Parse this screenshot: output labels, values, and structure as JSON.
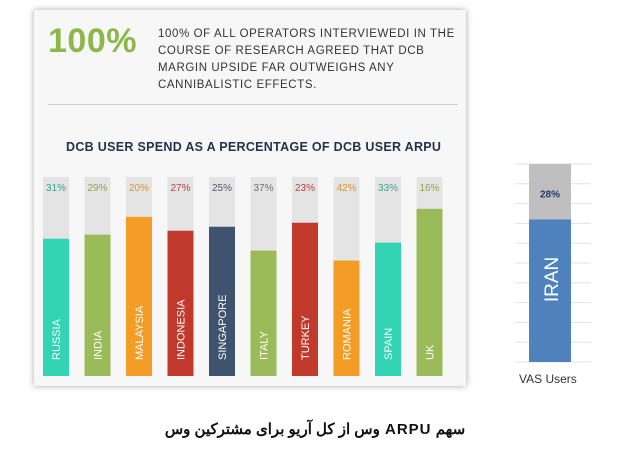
{
  "headline": "100%",
  "note": "100% OF ALL OPERATORS INTERVIEWEDI IN THE COURSE OF RESEARCH AGREED THAT DCB MARGIN UPSIDE FAR OUTWEIGHS ANY CANNIBALISTIC EFFECTS.",
  "caption": "سهم ARPU وس از کل آریو  برای مشترکین وس",
  "colors": {
    "track": "#e4e4e4",
    "headline": "#8cb84a",
    "iran_bar": "#4f81bd",
    "iran_track": "#bfbfbf"
  },
  "chart_data": [
    {
      "type": "bar",
      "title": "DCB USER SPEND AS A PERCENTAGE OF DCB USER ARPU",
      "categories": [
        "RUSSIA",
        "INDIA",
        "MALAYSIA",
        "INDONESIA",
        "SINGAPORE",
        "ITALY",
        "TURKEY",
        "ROMANIA",
        "SPAIN",
        "UK"
      ],
      "values": [
        31,
        29,
        20,
        27,
        25,
        37,
        23,
        42,
        33,
        16
      ],
      "value_labels": [
        "31%",
        "29%",
        "20%",
        "27%",
        "25%",
        "37%",
        "23%",
        "42%",
        "33%",
        "16%"
      ],
      "bar_colors": [
        "#33d4b4",
        "#9bbb59",
        "#f39c26",
        "#c0392b",
        "#3e536d",
        "#9bbb59",
        "#c0392b",
        "#f39c26",
        "#33d4b4",
        "#9bbb59"
      ],
      "label_colors": [
        "#3aa58a",
        "#8aa850",
        "#e0922e",
        "#b3433a",
        "#4a5a6e",
        "#707070",
        "#b3433a",
        "#e0922e",
        "#3aa58a",
        "#8aa850"
      ],
      "ylim": [
        0,
        100
      ],
      "grid": false
    },
    {
      "type": "bar",
      "categories": [
        "IRAN"
      ],
      "values": [
        28
      ],
      "value_labels": [
        "28%"
      ],
      "xlabel": "VAS Users",
      "ylim": [
        0,
        100
      ],
      "grid": true
    }
  ]
}
